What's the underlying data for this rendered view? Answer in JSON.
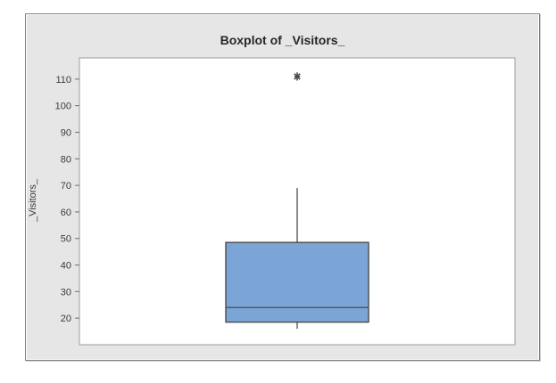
{
  "chart_data": {
    "type": "boxplot",
    "title": "Boxplot of _Visitors_",
    "ylabel": "_Visitors_",
    "xlabel": "",
    "ylim": [
      10,
      118
    ],
    "yticks": [
      20,
      30,
      40,
      50,
      60,
      70,
      80,
      90,
      100,
      110
    ],
    "grid": false,
    "legend": "none",
    "series": [
      {
        "name": "_Visitors_",
        "whisker_low": 16,
        "q1": 18.5,
        "median": 24,
        "q3": 48.5,
        "whisker_high": 69,
        "outliers": [
          111
        ]
      }
    ],
    "colors": {
      "box_fill": "#7ba5d6",
      "box_edge": "#4b4b4b",
      "plot_bg": "#ffffff",
      "plot_border": "#9b9b9b",
      "figure_bg": "#e6e6e6",
      "figure_border": "#808080",
      "tick_mark": "#6e6e6e",
      "tick_text": "#3a3a3a",
      "title_text": "#262626"
    }
  }
}
